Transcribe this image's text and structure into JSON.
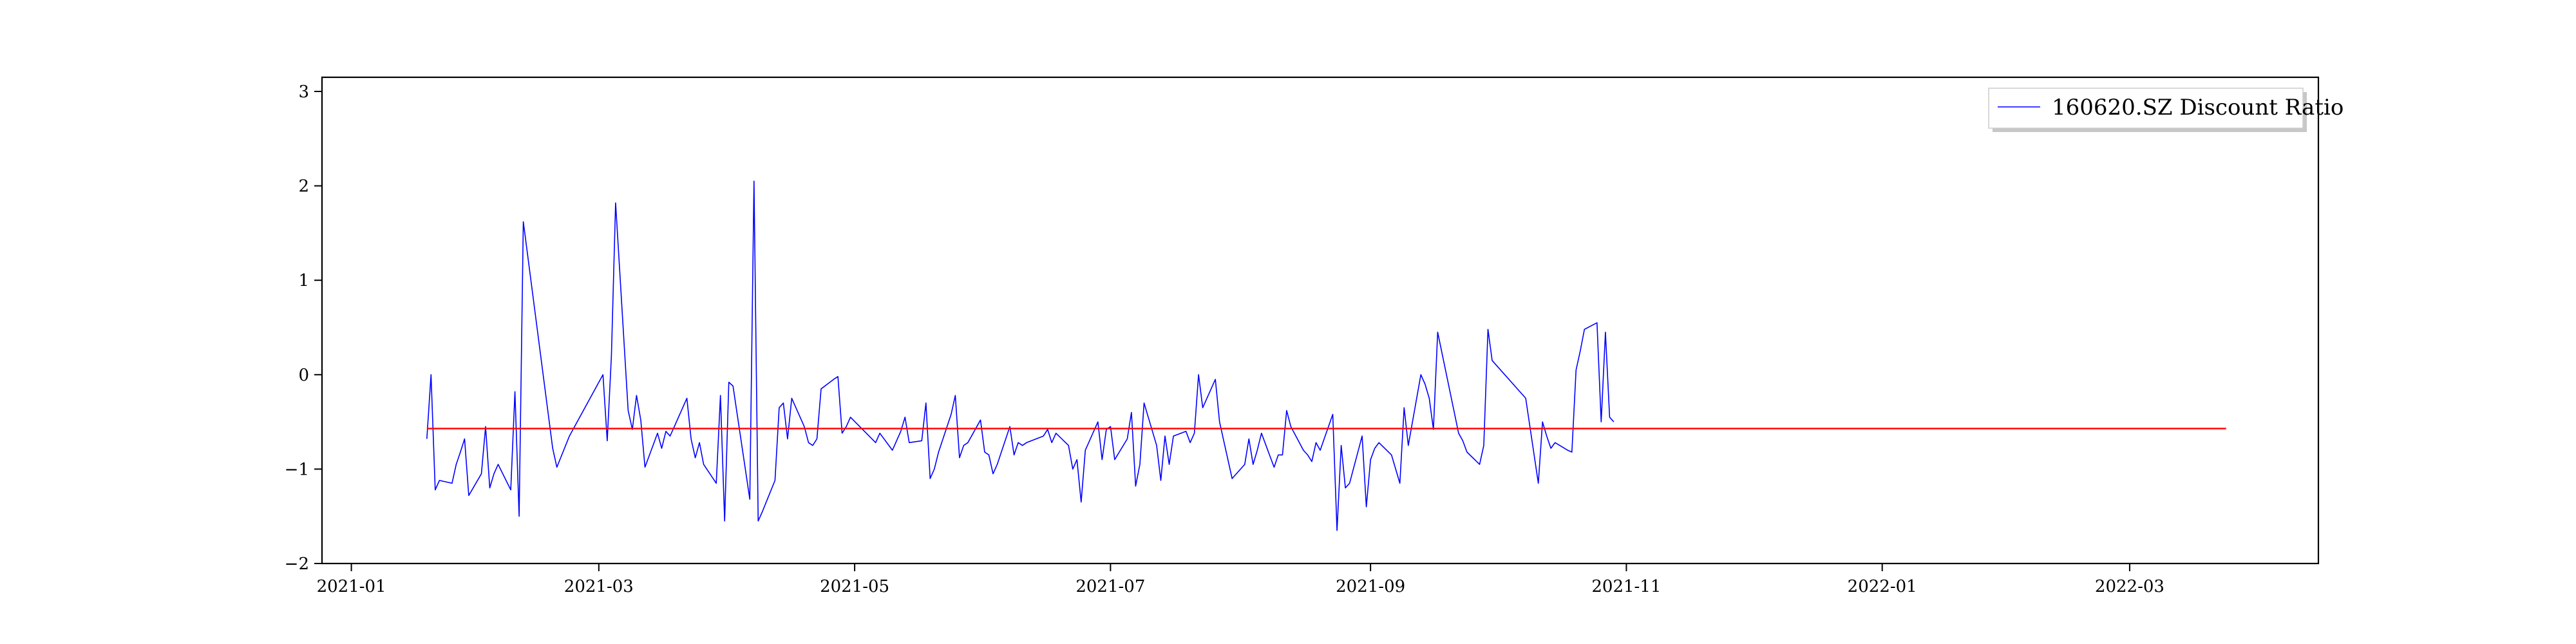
{
  "chart_data": {
    "type": "line",
    "title": "",
    "xlabel": "",
    "ylabel": "",
    "x_ticks": [
      "2021-01",
      "2021-03",
      "2021-05",
      "2021-07",
      "2021-09",
      "2021-11",
      "2022-01",
      "2022-03"
    ],
    "y_ticks": [
      "−2",
      "−1",
      "0",
      "1",
      "2",
      "3"
    ],
    "xlim": [
      "2020-12-25",
      "2022-04-15"
    ],
    "ylim": [
      -2.0,
      3.15
    ],
    "grid": false,
    "legend": {
      "placement": "top-right",
      "entries": [
        "160620.SZ Discount Ratio"
      ]
    },
    "series": [
      {
        "name": "160620.SZ Discount Ratio",
        "color": "#0000ff",
        "points": [
          [
            "2021-01-19",
            -0.68
          ],
          [
            "2021-01-20",
            0.0
          ],
          [
            "2021-01-21",
            -1.22
          ],
          [
            "2021-01-22",
            -1.12
          ],
          [
            "2021-01-25",
            -1.15
          ],
          [
            "2021-01-26",
            -0.95
          ],
          [
            "2021-01-27",
            -0.82
          ],
          [
            "2021-01-28",
            -0.68
          ],
          [
            "2021-01-29",
            -1.28
          ],
          [
            "2021-02-01",
            -1.05
          ],
          [
            "2021-02-02",
            -0.55
          ],
          [
            "2021-02-03",
            -1.2
          ],
          [
            "2021-02-04",
            -1.05
          ],
          [
            "2021-02-05",
            -0.95
          ],
          [
            "2021-02-08",
            -1.22
          ],
          [
            "2021-02-09",
            -0.18
          ],
          [
            "2021-02-10",
            -1.5
          ],
          [
            "2021-02-11",
            1.62
          ],
          [
            "2021-02-18",
            -0.78
          ],
          [
            "2021-02-19",
            -0.98
          ],
          [
            "2021-02-22",
            -0.65
          ],
          [
            "2021-03-02",
            0.0
          ],
          [
            "2021-03-03",
            -0.7
          ],
          [
            "2021-03-04",
            0.2
          ],
          [
            "2021-03-05",
            1.82
          ],
          [
            "2021-03-08",
            -0.38
          ],
          [
            "2021-03-09",
            -0.58
          ],
          [
            "2021-03-10",
            -0.22
          ],
          [
            "2021-03-11",
            -0.48
          ],
          [
            "2021-03-12",
            -0.98
          ],
          [
            "2021-03-15",
            -0.62
          ],
          [
            "2021-03-16",
            -0.78
          ],
          [
            "2021-03-17",
            -0.6
          ],
          [
            "2021-03-18",
            -0.65
          ],
          [
            "2021-03-19",
            -0.55
          ],
          [
            "2021-03-22",
            -0.25
          ],
          [
            "2021-03-23",
            -0.68
          ],
          [
            "2021-03-24",
            -0.88
          ],
          [
            "2021-03-25",
            -0.72
          ],
          [
            "2021-03-26",
            -0.95
          ],
          [
            "2021-03-29",
            -1.15
          ],
          [
            "2021-03-30",
            -0.22
          ],
          [
            "2021-03-31",
            -1.55
          ],
          [
            "2021-04-01",
            -0.08
          ],
          [
            "2021-04-02",
            -0.12
          ],
          [
            "2021-04-06",
            -1.32
          ],
          [
            "2021-04-07",
            2.05
          ],
          [
            "2021-04-08",
            -1.55
          ],
          [
            "2021-04-09",
            -1.45
          ],
          [
            "2021-04-12",
            -1.12
          ],
          [
            "2021-04-13",
            -0.35
          ],
          [
            "2021-04-14",
            -0.3
          ],
          [
            "2021-04-15",
            -0.68
          ],
          [
            "2021-04-16",
            -0.25
          ],
          [
            "2021-04-19",
            -0.55
          ],
          [
            "2021-04-20",
            -0.72
          ],
          [
            "2021-04-21",
            -0.75
          ],
          [
            "2021-04-22",
            -0.68
          ],
          [
            "2021-04-23",
            -0.15
          ],
          [
            "2021-04-26",
            -0.05
          ],
          [
            "2021-04-27",
            -0.02
          ],
          [
            "2021-04-28",
            -0.62
          ],
          [
            "2021-04-29",
            -0.55
          ],
          [
            "2021-04-30",
            -0.45
          ],
          [
            "2021-05-06",
            -0.72
          ],
          [
            "2021-05-07",
            -0.62
          ],
          [
            "2021-05-10",
            -0.8
          ],
          [
            "2021-05-11",
            -0.7
          ],
          [
            "2021-05-12",
            -0.6
          ],
          [
            "2021-05-13",
            -0.45
          ],
          [
            "2021-05-14",
            -0.72
          ],
          [
            "2021-05-17",
            -0.7
          ],
          [
            "2021-05-18",
            -0.3
          ],
          [
            "2021-05-19",
            -1.1
          ],
          [
            "2021-05-20",
            -1.0
          ],
          [
            "2021-05-21",
            -0.82
          ],
          [
            "2021-05-24",
            -0.42
          ],
          [
            "2021-05-25",
            -0.22
          ],
          [
            "2021-05-26",
            -0.88
          ],
          [
            "2021-05-27",
            -0.75
          ],
          [
            "2021-05-28",
            -0.72
          ],
          [
            "2021-05-31",
            -0.48
          ],
          [
            "2021-06-01",
            -0.82
          ],
          [
            "2021-06-02",
            -0.85
          ],
          [
            "2021-06-03",
            -1.05
          ],
          [
            "2021-06-04",
            -0.95
          ],
          [
            "2021-06-07",
            -0.55
          ],
          [
            "2021-06-08",
            -0.85
          ],
          [
            "2021-06-09",
            -0.72
          ],
          [
            "2021-06-10",
            -0.75
          ],
          [
            "2021-06-11",
            -0.72
          ],
          [
            "2021-06-15",
            -0.65
          ],
          [
            "2021-06-16",
            -0.58
          ],
          [
            "2021-06-17",
            -0.72
          ],
          [
            "2021-06-18",
            -0.62
          ],
          [
            "2021-06-21",
            -0.75
          ],
          [
            "2021-06-22",
            -1.0
          ],
          [
            "2021-06-23",
            -0.9
          ],
          [
            "2021-06-24",
            -1.35
          ],
          [
            "2021-06-25",
            -0.8
          ],
          [
            "2021-06-28",
            -0.5
          ],
          [
            "2021-06-29",
            -0.9
          ],
          [
            "2021-06-30",
            -0.58
          ],
          [
            "2021-07-01",
            -0.55
          ],
          [
            "2021-07-02",
            -0.9
          ],
          [
            "2021-07-05",
            -0.68
          ],
          [
            "2021-07-06",
            -0.4
          ],
          [
            "2021-07-07",
            -1.18
          ],
          [
            "2021-07-08",
            -0.95
          ],
          [
            "2021-07-09",
            -0.3
          ],
          [
            "2021-07-12",
            -0.75
          ],
          [
            "2021-07-13",
            -1.12
          ],
          [
            "2021-07-14",
            -0.65
          ],
          [
            "2021-07-15",
            -0.95
          ],
          [
            "2021-07-16",
            -0.65
          ],
          [
            "2021-07-19",
            -0.6
          ],
          [
            "2021-07-20",
            -0.72
          ],
          [
            "2021-07-21",
            -0.62
          ],
          [
            "2021-07-22",
            0.0
          ],
          [
            "2021-07-23",
            -0.35
          ],
          [
            "2021-07-26",
            -0.05
          ],
          [
            "2021-07-27",
            -0.5
          ],
          [
            "2021-07-28",
            -0.7
          ],
          [
            "2021-07-29",
            -0.9
          ],
          [
            "2021-07-30",
            -1.1
          ],
          [
            "2021-08-02",
            -0.95
          ],
          [
            "2021-08-03",
            -0.68
          ],
          [
            "2021-08-04",
            -0.95
          ],
          [
            "2021-08-05",
            -0.8
          ],
          [
            "2021-08-06",
            -0.62
          ],
          [
            "2021-08-09",
            -0.98
          ],
          [
            "2021-08-10",
            -0.85
          ],
          [
            "2021-08-11",
            -0.85
          ],
          [
            "2021-08-12",
            -0.38
          ],
          [
            "2021-08-13",
            -0.55
          ],
          [
            "2021-08-16",
            -0.8
          ],
          [
            "2021-08-17",
            -0.85
          ],
          [
            "2021-08-18",
            -0.92
          ],
          [
            "2021-08-19",
            -0.72
          ],
          [
            "2021-08-20",
            -0.8
          ],
          [
            "2021-08-23",
            -0.42
          ],
          [
            "2021-08-24",
            -1.65
          ],
          [
            "2021-08-25",
            -0.75
          ],
          [
            "2021-08-26",
            -1.2
          ],
          [
            "2021-08-27",
            -1.15
          ],
          [
            "2021-08-30",
            -0.65
          ],
          [
            "2021-08-31",
            -1.4
          ],
          [
            "2021-09-01",
            -0.9
          ],
          [
            "2021-09-02",
            -0.78
          ],
          [
            "2021-09-03",
            -0.72
          ],
          [
            "2021-09-06",
            -0.85
          ],
          [
            "2021-09-07",
            -1.0
          ],
          [
            "2021-09-08",
            -1.15
          ],
          [
            "2021-09-09",
            -0.35
          ],
          [
            "2021-09-10",
            -0.75
          ],
          [
            "2021-09-13",
            0.0
          ],
          [
            "2021-09-14",
            -0.1
          ],
          [
            "2021-09-15",
            -0.25
          ],
          [
            "2021-09-16",
            -0.58
          ],
          [
            "2021-09-17",
            0.45
          ],
          [
            "2021-09-22",
            -0.62
          ],
          [
            "2021-09-23",
            -0.7
          ],
          [
            "2021-09-24",
            -0.82
          ],
          [
            "2021-09-27",
            -0.95
          ],
          [
            "2021-09-28",
            -0.75
          ],
          [
            "2021-09-29",
            0.48
          ],
          [
            "2021-09-30",
            0.15
          ],
          [
            "2021-10-08",
            -0.25
          ],
          [
            "2021-10-11",
            -1.15
          ],
          [
            "2021-10-12",
            -0.5
          ],
          [
            "2021-10-13",
            -0.65
          ],
          [
            "2021-10-14",
            -0.78
          ],
          [
            "2021-10-15",
            -0.72
          ],
          [
            "2021-10-18",
            -0.8
          ],
          [
            "2021-10-19",
            -0.82
          ],
          [
            "2021-10-20",
            0.05
          ],
          [
            "2021-10-21",
            0.25
          ],
          [
            "2021-10-22",
            0.48
          ],
          [
            "2021-10-25",
            0.55
          ],
          [
            "2021-10-26",
            -0.5
          ],
          [
            "2021-10-27",
            0.45
          ],
          [
            "2021-10-28",
            -0.45
          ],
          [
            "2021-10-29",
            -0.5
          ]
        ]
      },
      {
        "name": "",
        "color": "#ff0000",
        "points": [
          [
            "2021-01-19",
            -0.57
          ],
          [
            "2022-03-24",
            -0.57
          ]
        ]
      }
    ]
  }
}
